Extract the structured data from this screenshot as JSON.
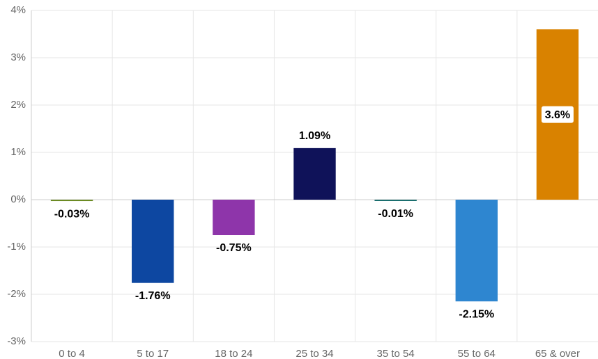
{
  "chart_data": {
    "type": "bar",
    "categories": [
      "0 to 4",
      "5 to 17",
      "18 to 24",
      "25 to 34",
      "35 to 54",
      "55 to 64",
      "65 & over"
    ],
    "values": [
      -0.03,
      -1.76,
      -0.75,
      1.09,
      -0.01,
      -2.15,
      3.6
    ],
    "value_labels": [
      "-0.03%",
      "-1.76%",
      "-0.75%",
      "1.09%",
      "-0.01%",
      "-2.15%",
      "3.6%"
    ],
    "colors": [
      "#6b8a23",
      "#0d47a1",
      "#8e35aa",
      "#0f1259",
      "#1a6e6e",
      "#2e86d0",
      "#d98200"
    ],
    "ylim": [
      -3,
      4
    ],
    "yticks": [
      {
        "value": -3,
        "label": "-3%"
      },
      {
        "value": -2,
        "label": "-2%"
      },
      {
        "value": -1,
        "label": "-1%"
      },
      {
        "value": 0,
        "label": "0%"
      },
      {
        "value": 1,
        "label": "1%"
      },
      {
        "value": 2,
        "label": "2%"
      },
      {
        "value": 3,
        "label": "3%"
      },
      {
        "value": 4,
        "label": "4%"
      }
    ],
    "grid": true
  }
}
